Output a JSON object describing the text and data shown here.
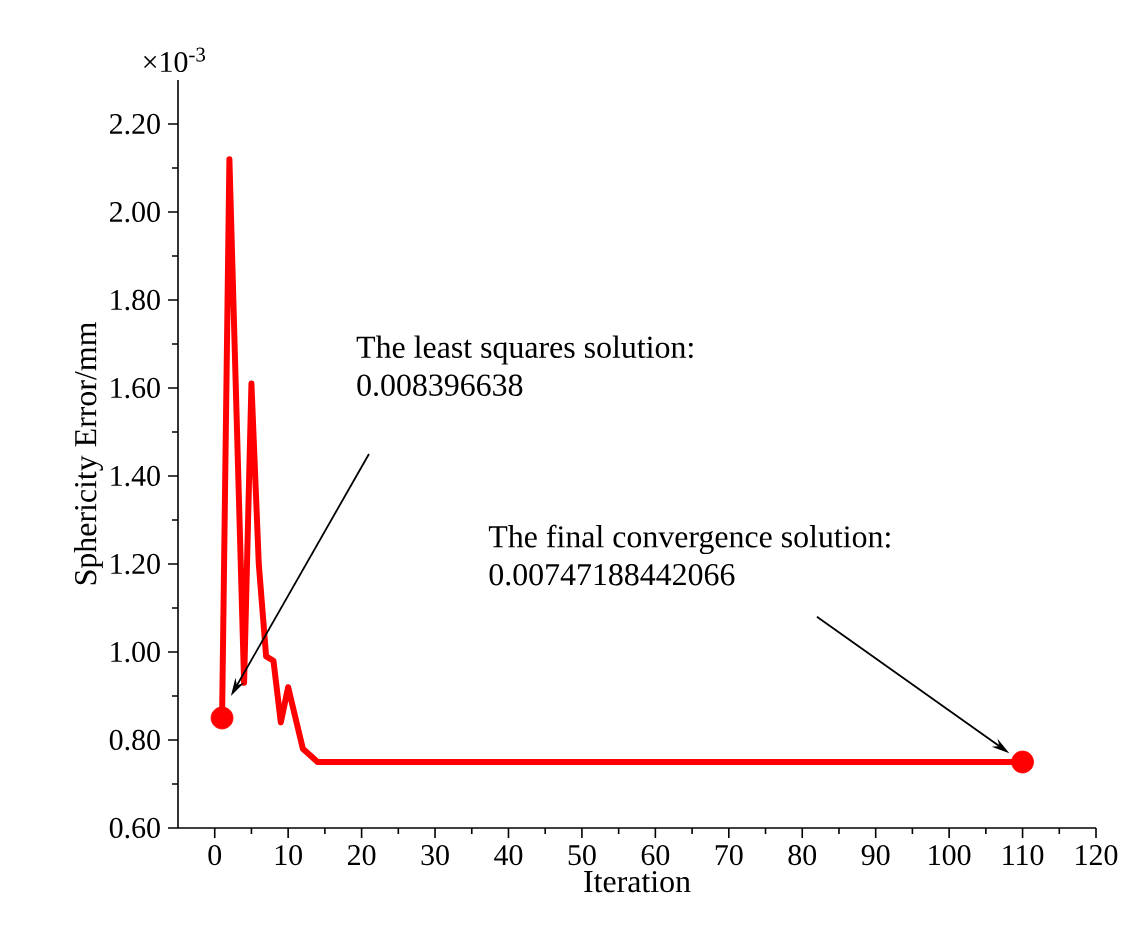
{
  "chart_data": {
    "type": "line",
    "xlabel": "Iteration",
    "ylabel": "Sphericity Error/mm",
    "x": [
      1,
      2,
      4,
      5,
      6,
      7,
      8,
      9,
      10,
      12,
      14,
      20,
      40,
      60,
      80,
      100,
      110
    ],
    "series": [
      {
        "color": "#ff0000",
        "values": [
          0.85,
          2.12,
          0.93,
          1.61,
          1.2,
          0.99,
          0.98,
          0.84,
          0.92,
          0.78,
          0.75,
          0.75,
          0.75,
          0.75,
          0.75,
          0.75,
          0.75
        ]
      },
      {
        "type": "scatter",
        "color": "#ff0000",
        "marker": "circle",
        "x": [
          1,
          110
        ],
        "values": [
          0.85,
          0.75
        ]
      }
    ],
    "xlim": [
      -5,
      120
    ],
    "ylim": [
      0.6,
      2.3
    ],
    "xticks": [
      0,
      10,
      20,
      30,
      40,
      50,
      60,
      70,
      80,
      90,
      100,
      110,
      120
    ],
    "yticks": [
      {
        "value": 0.6,
        "label": "0.60"
      },
      {
        "value": 0.8,
        "label": "0.80"
      },
      {
        "value": 1.0,
        "label": "1.00"
      },
      {
        "value": 1.2,
        "label": "1.20"
      },
      {
        "value": 1.4,
        "label": "1.40"
      },
      {
        "value": 1.6,
        "label": "1.60"
      },
      {
        "value": 1.8,
        "label": "1.80"
      },
      {
        "value": 2.0,
        "label": "2.00"
      },
      {
        "value": 2.2,
        "label": "2.20"
      }
    ],
    "grid": false,
    "marker": "none",
    "line_style": "solid",
    "annotations": [
      "×10$^{-3}$",
      "The least squares solution:",
      "0.008396638",
      "The final convergence solution:",
      "0.00747188442066"
    ]
  }
}
